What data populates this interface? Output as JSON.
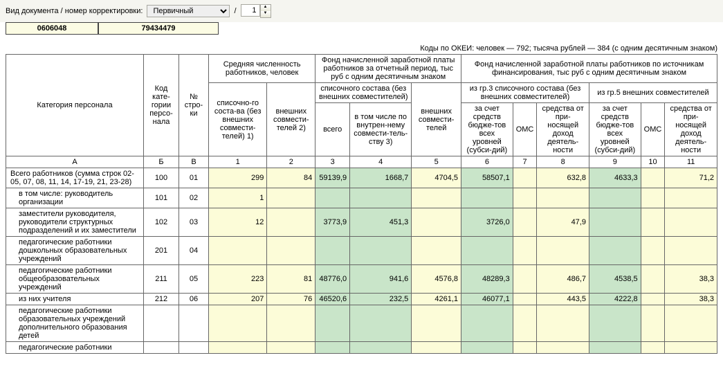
{
  "toolbar": {
    "label": "Вид документа / номер корректировки:",
    "docType": "Первичный",
    "sep": "/",
    "corrNum": "1"
  },
  "codesBar": {
    "c1": "0606048",
    "c2": "79434479"
  },
  "okei": "Коды по ОКЕИ: человек — 792; тысяча рублей — 384 (с одним десятичным знаком)",
  "headers": {
    "cat": "Категория персонала",
    "catCode": "Код кате-гории персо-нала",
    "rowNo": "№ стро-ки",
    "avgCount": "Средняя численность работников, человек",
    "avg1": "списочно-го соста-ва (без внешних совмести-телей) 1)",
    "avg2": "внешних совмести-телей 2)",
    "fund": "Фонд начисленной заработной платы работников за отчетный период, тыс руб с одним десятичным знаком",
    "fund_sp": "списочного состава (без внешних совместителей)",
    "fund_sp_all": "всего",
    "fund_sp_inner": "в том числе по внутрен-нему совмести-тель-ству 3)",
    "fund_ext": "внешних совмести-телей",
    "src": "Фонд начисленной заработной платы работников по источникам финансирования, тыс руб с одним десятичным знаком",
    "src3": "из гр.3 списочного состава (без внешних совместителей)",
    "src5": "из гр.5 внешних совместителей",
    "src_budget": "за счет средств бюдже-тов всех уровней (субси-дий)",
    "src_oms": "ОМС",
    "src_income": "средства от при-носящей доход деятель-ности"
  },
  "letterRow": {
    "a": "А",
    "b": "Б",
    "v": "В",
    "n1": "1",
    "n2": "2",
    "n3": "3",
    "n4": "4",
    "n5": "5",
    "n6": "6",
    "n7": "7",
    "n8": "8",
    "n9": "9",
    "n10": "10",
    "n11": "11"
  },
  "rows": [
    {
      "label": "Всего работников (сумма строк 02-05, 07, 08, 11, 14, 17-19, 21, 23-28)",
      "code": "100",
      "no": "01",
      "v": [
        "299",
        "84",
        "59139,9",
        "1668,7",
        "4704,5",
        "58507,1",
        "",
        "632,8",
        "4633,3",
        "",
        "71,2"
      ],
      "indent": false
    },
    {
      "label": "в том числе: руководитель организации",
      "code": "101",
      "no": "02",
      "v": [
        "1",
        "",
        "",
        "",
        "",
        "",
        "",
        "",
        "",
        "",
        ""
      ],
      "indent": true
    },
    {
      "label": "заместители руководителя, руководители структурных подразделений и их заместители",
      "code": "102",
      "no": "03",
      "v": [
        "12",
        "",
        "3773,9",
        "451,3",
        "",
        "3726,0",
        "",
        "47,9",
        "",
        "",
        ""
      ],
      "indent": true
    },
    {
      "label": "педагогические работники дошкольных образовательных учреждений",
      "code": "201",
      "no": "04",
      "v": [
        "",
        "",
        "",
        "",
        "",
        "",
        "",
        "",
        "",
        "",
        ""
      ],
      "indent": true
    },
    {
      "label": "педагогические работники общеобразовательных  учреждений",
      "code": "211",
      "no": "05",
      "v": [
        "223",
        "81",
        "48776,0",
        "941,6",
        "4576,8",
        "48289,3",
        "",
        "486,7",
        "4538,5",
        "",
        "38,3"
      ],
      "indent": true
    },
    {
      "label": "из них учителя",
      "code": "212",
      "no": "06",
      "v": [
        "207",
        "76",
        "46520,6",
        "232,5",
        "4261,1",
        "46077,1",
        "",
        "443,5",
        "4222,8",
        "",
        "38,3"
      ],
      "indent": true,
      "sub": true
    },
    {
      "label": "педагогические работники образовательных учреждений дополнительного образования детей",
      "code": "",
      "no": "",
      "v": [
        "",
        "",
        "",
        "",
        "",
        "",
        "",
        "",
        "",
        "",
        ""
      ],
      "indent": true
    },
    {
      "label": "педагогические работники",
      "code": "",
      "no": "",
      "v": [
        "",
        "",
        "",
        "",
        "",
        "",
        "",
        "",
        "",
        "",
        ""
      ],
      "indent": true
    }
  ],
  "colClasses": [
    "hl-yell",
    "hl-yell",
    "hl-green",
    "hl-green",
    "hl-yell",
    "hl-green",
    "hl-yell",
    "hl-yell",
    "hl-green",
    "hl-yell",
    "hl-yell"
  ],
  "colors": {
    "green": "#c9e5c9",
    "yellow": "#fcfcd8",
    "border": "#666"
  }
}
